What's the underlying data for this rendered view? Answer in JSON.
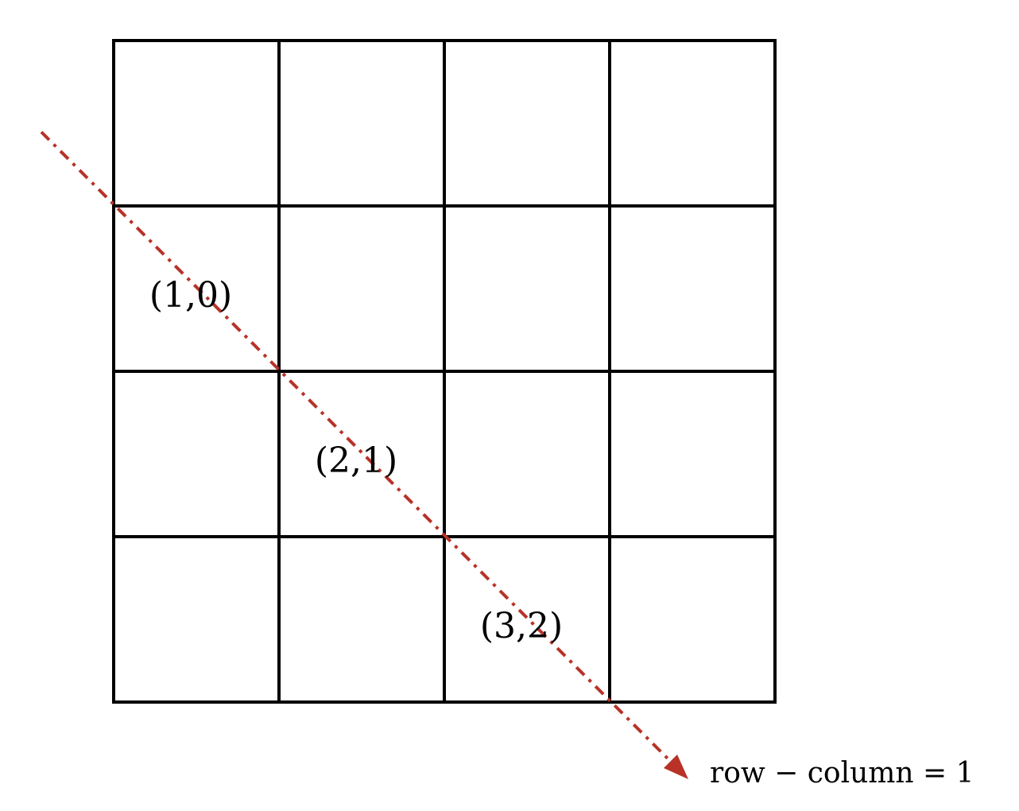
{
  "grid": {
    "rows": 4,
    "columns": 4,
    "line_color": "#000000"
  },
  "highlighted_cells": [
    {
      "row": 1,
      "col": 0,
      "label": "(1,0)"
    },
    {
      "row": 2,
      "col": 1,
      "label": "(2,1)"
    },
    {
      "row": 3,
      "col": 2,
      "label": "(3,2)"
    }
  ],
  "diagonal": {
    "caption": "row − column = 1",
    "color": "#b83228",
    "style": "dash-dot",
    "arrow": true
  }
}
